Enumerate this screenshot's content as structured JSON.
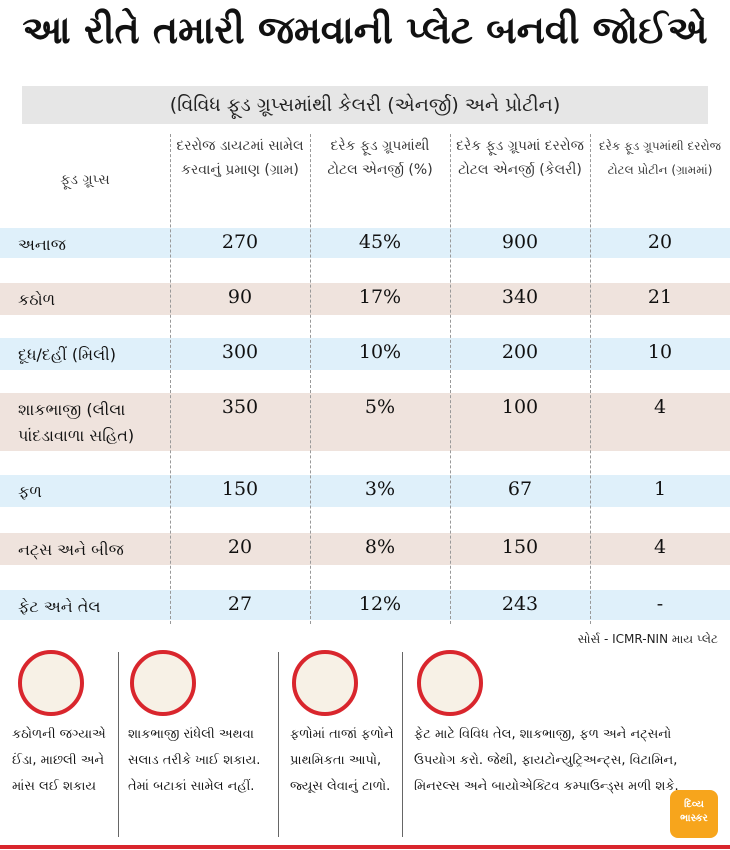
{
  "header": {
    "title": "આ રીતે તમારી જમવાની પ્લેટ બનવી જોઈએ",
    "subtitle": "(વિવિધ ફૂડ ગ્રૂપ્સમાંથી કેલરી (એનર્જી) અને પ્રોટીન)"
  },
  "table": {
    "columns": [
      "ફૂડ ગ્રૂપ્સ",
      "દરરોજ ડાયટમાં સામેલ કરવાનું પ્રમાણ (ગ્રામ)",
      "દરેક ફૂડ ગ્રૂપમાંથી ટોટલ એનર્જી (%)",
      "દરેક ફૂડ ગ્રૂપમાં દરરોજ ટોટલ એનર્જી (કેલરી)",
      "દરેક ફૂડ ગ્રૂપમાંથી દરરોજ ટોટલ પ્રોટીન (ગ્રામમાં)"
    ],
    "rows": [
      [
        "અનાજ",
        "270",
        "45%",
        "900",
        "20"
      ],
      [
        "કઠોળ",
        "90",
        "17%",
        "340",
        "21"
      ],
      [
        "દૂધ/દહીં (મિલી)",
        "300",
        "10%",
        "200",
        "10"
      ],
      [
        "શાકભાજી (લીલા પાંદડાવાળા સહિત)",
        "350",
        "5%",
        "100",
        "4"
      ],
      [
        "ફળ",
        "150",
        "3%",
        "67",
        "1"
      ],
      [
        "નટ્સ અને બીજ",
        "20",
        "8%",
        "150",
        "4"
      ],
      [
        "ફેટ અને તેલ",
        "27",
        "12%",
        "243",
        "-"
      ]
    ]
  },
  "source": "સોર્સ - ICMR-NIN માય પ્લેટ",
  "tips": [
    "કઠોળની જગ્યાએ ઈંડા, માછલી અને માંસ લઈ શકાય",
    "શાકભાજી રાંધેલી અથવા સલાડ તરીકે ખાઈ શકાય. તેમાં બટાકાં સામેલ નહીં.",
    "ફળોમાં તાજાં ફળોને પ્રાથમિકતા આપો, જ્યૂસ લેવાનું ટાળો.",
    "ફેટ માટે વિવિધ તેલ, શાકભાજી, ફળ અને નટ્સનો ઉપયોગ કરો. જેથી, ફાયટોન્યુટ્રિઅન્ટ્સ, વિટામિન, મિનરલ્સ અને બાયોએક્ટિવ કમ્પાઉન્ડ્સ મળી શકે."
  ],
  "logo": "દિવ્ય ભાસ્કર"
}
